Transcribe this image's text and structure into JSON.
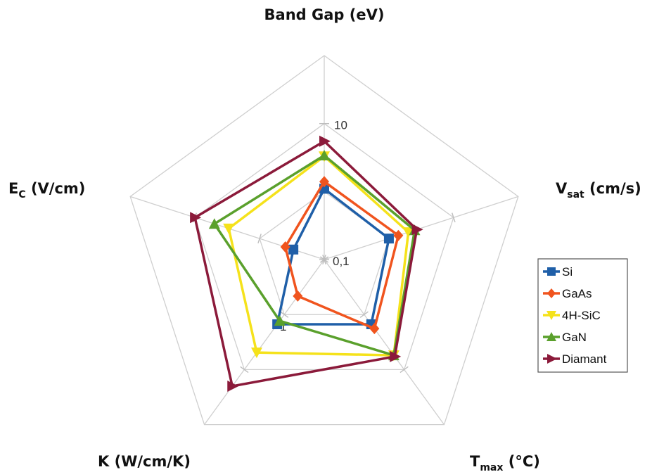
{
  "chart_data": {
    "type": "radar",
    "scale": "log",
    "rlim": [
      0.1,
      100
    ],
    "axes": [
      {
        "name": "Band Gap (eV)",
        "main": "Band Gap (eV)"
      },
      {
        "name": "Vsat (cm/s)",
        "main": "V",
        "sub": "sat",
        "rest": " (cm/s)"
      },
      {
        "name": "Tmax (°C)",
        "main": "T",
        "sub": "max",
        "rest": "   (°C)"
      },
      {
        "name": "K (W/cm/K)",
        "main": "K (W/cm/K)"
      },
      {
        "name": "EC (V/cm)",
        "main": "E",
        "sub": "C",
        "rest": " (V/cm)"
      }
    ],
    "tick_labels": [
      "0,1",
      "1",
      "10"
    ],
    "series": [
      {
        "name": "Si",
        "color": "#1f5fa8",
        "marker": "square",
        "values": [
          1.1,
          1.0,
          1.5,
          1.5,
          0.3
        ]
      },
      {
        "name": "GaAs",
        "color": "#f0541e",
        "marker": "diamond",
        "values": [
          1.4,
          1.4,
          1.8,
          0.46,
          0.4
        ]
      },
      {
        "name": "4H-SiC",
        "color": "#f5e21b",
        "marker": "triangle-down",
        "values": [
          3.3,
          2.0,
          5.5,
          4.9,
          3.0
        ]
      },
      {
        "name": "GaN",
        "color": "#5aa02c",
        "marker": "triangle-up",
        "values": [
          3.4,
          2.5,
          5.5,
          1.3,
          5.0
        ]
      },
      {
        "name": "Diamant",
        "color": "#8b1a3a",
        "marker": "triangle-right",
        "values": [
          5.5,
          2.7,
          5.8,
          20,
          10
        ]
      }
    ],
    "grid": true,
    "legend_position": "right"
  }
}
